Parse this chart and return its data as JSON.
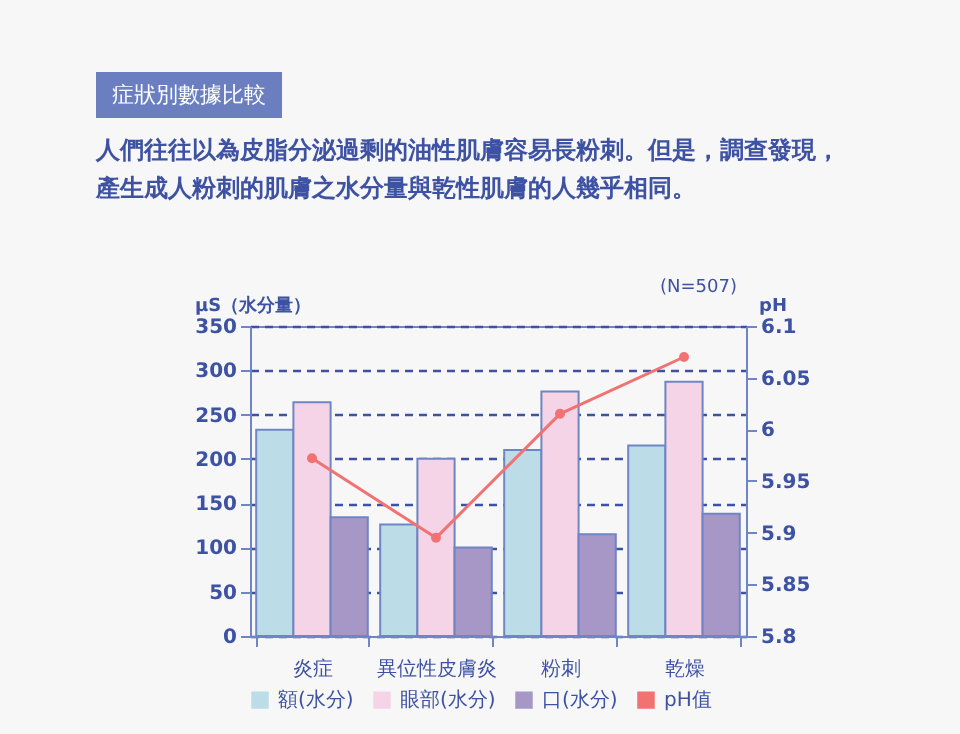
{
  "chart_data": {
    "type": "bar",
    "title": "症狀別數據比較",
    "subtitle": "人們往往以為皮脂分泌過剩的油性肌膚容易長粉刺。但是，調查發現，產生成人粉刺的肌膚之水分量與乾性肌膚的人幾乎相同。",
    "annotations": [
      "(N=507)"
    ],
    "ylabel": "µS（水分量）",
    "y2label": "pH",
    "categories": [
      "炎症",
      "異位性皮膚炎",
      "粉刺",
      "乾燥"
    ],
    "series": [
      {
        "name": "額(水分)",
        "color": "#bcdde8",
        "values": [
          233,
          126,
          210,
          215
        ]
      },
      {
        "name": "眼部(水分)",
        "color": "#f4d4e6",
        "values": [
          264,
          200,
          276,
          287
        ]
      },
      {
        "name": "口(水分)",
        "color": "#a797c6",
        "values": [
          134,
          100,
          115,
          138
        ]
      },
      {
        "name": "pH值",
        "type": "line",
        "axis": "y2",
        "color": "#f07272",
        "marker": "circle",
        "values": [
          5.972,
          5.895,
          6.015,
          6.07
        ]
      }
    ],
    "ylim": [
      0,
      350
    ],
    "yticks": [
      0,
      50,
      100,
      150,
      200,
      250,
      300,
      350
    ],
    "y2lim": [
      5.8,
      6.1
    ],
    "y2ticks": [
      5.8,
      5.85,
      5.9,
      5.95,
      6,
      6.05,
      6.1
    ],
    "grid": "y",
    "legend": "bottom"
  }
}
